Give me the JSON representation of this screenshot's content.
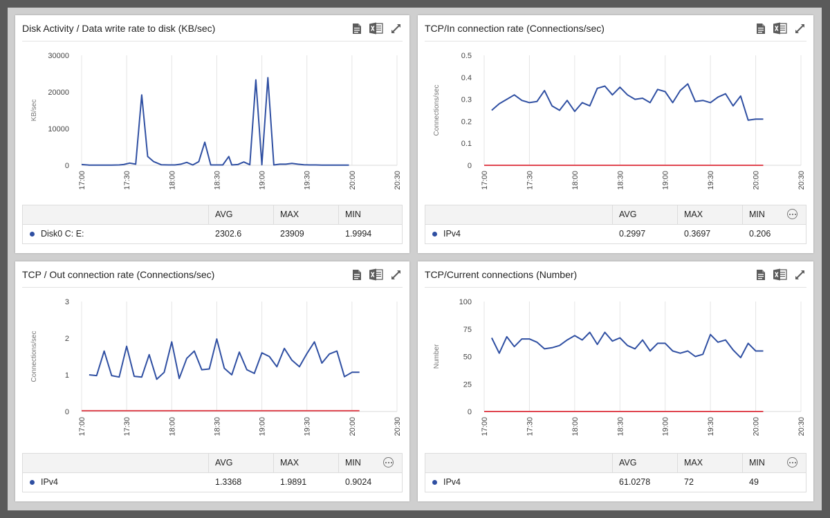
{
  "panels": [
    {
      "title": "Disk Activity / Data write rate to disk (KB/sec)",
      "show_more": false,
      "stats": {
        "headers": [
          "AVG",
          "MAX",
          "MIN"
        ],
        "row": {
          "name": "Disk0 C: E:",
          "avg": "2302.6",
          "max": "23909",
          "min": "1.9994"
        }
      },
      "chart_data": {
        "type": "line",
        "ylabel": "KB/sec",
        "yticks": [
          "0",
          "10000",
          "20000",
          "30000"
        ],
        "ylim": [
          0,
          30000
        ],
        "xticks": [
          "17:00",
          "17:30",
          "18:00",
          "18:30",
          "19:00",
          "19:30",
          "20:00",
          "20:30"
        ],
        "xlim": [
          0,
          210
        ],
        "grid": "vertical",
        "series": [
          {
            "color": "#2f4fa2",
            "x": [
              0,
              5,
              10,
              15,
              20,
              25,
              28,
              32,
              36,
              40,
              44,
              48,
              53,
              58,
              62,
              66,
              70,
              74,
              78,
              82,
              86,
              90,
              94,
              98,
              100,
              104,
              108,
              112,
              116,
              120,
              124,
              128,
              132,
              136,
              140,
              144,
              148,
              152,
              156,
              160,
              164,
              168,
              172,
              178
            ],
            "y": [
              200,
              50,
              50,
              50,
              50,
              100,
              200,
              600,
              300,
              19200,
              2400,
              1000,
              150,
              100,
              100,
              300,
              800,
              100,
              1000,
              6300,
              100,
              100,
              100,
              2400,
              100,
              200,
              900,
              150,
              23300,
              150,
              23900,
              100,
              300,
              300,
              500,
              300,
              150,
              100,
              100,
              50,
              50,
              50,
              50,
              50
            ]
          }
        ]
      }
    },
    {
      "title": "TCP/In connection rate (Connections/sec)",
      "show_more": true,
      "stats": {
        "headers": [
          "AVG",
          "MAX",
          "MIN"
        ],
        "row": {
          "name": "IPv4",
          "avg": "0.2997",
          "max": "0.3697",
          "min": "0.206"
        }
      },
      "chart_data": {
        "type": "line",
        "ylabel": "Connections/sec",
        "yticks": [
          "0",
          "0.1",
          "0.2",
          "0.3",
          "0.4",
          "0.5"
        ],
        "ylim": [
          0,
          0.5
        ],
        "xticks": [
          "17:00",
          "17:30",
          "18:00",
          "18:30",
          "19:00",
          "19:30",
          "20:00",
          "20:30"
        ],
        "xlim": [
          0,
          210
        ],
        "grid": "vertical",
        "series": [
          {
            "color": "#2f4fa2",
            "x": [
              5,
              10,
              15,
              20,
              25,
              30,
              35,
              40,
              45,
              50,
              55,
              60,
              65,
              70,
              75,
              80,
              85,
              90,
              95,
              100,
              105,
              110,
              115,
              120,
              125,
              130,
              135,
              140,
              145,
              150,
              155,
              160,
              165,
              170,
              175,
              180,
              185
            ],
            "y": [
              0.25,
              0.28,
              0.3,
              0.32,
              0.295,
              0.285,
              0.29,
              0.34,
              0.27,
              0.25,
              0.295,
              0.245,
              0.285,
              0.27,
              0.35,
              0.36,
              0.32,
              0.355,
              0.32,
              0.3,
              0.305,
              0.285,
              0.345,
              0.335,
              0.285,
              0.34,
              0.37,
              0.29,
              0.295,
              0.285,
              0.31,
              0.325,
              0.27,
              0.315,
              0.205,
              0.21,
              0.21
            ]
          },
          {
            "color": "#e0454f",
            "x": [
              0,
              185
            ],
            "y": [
              0,
              0
            ]
          }
        ]
      }
    },
    {
      "title": "TCP / Out connection rate (Connections/sec)",
      "show_more": true,
      "stats": {
        "headers": [
          "AVG",
          "MAX",
          "MIN"
        ],
        "row": {
          "name": "IPv4",
          "avg": "1.3368",
          "max": "1.9891",
          "min": "0.9024"
        }
      },
      "chart_data": {
        "type": "line",
        "ylabel": "Connections/sec",
        "yticks": [
          "0",
          "1",
          "2",
          "3"
        ],
        "ylim": [
          0,
          3
        ],
        "xticks": [
          "17:00",
          "17:30",
          "18:00",
          "18:30",
          "19:00",
          "19:30",
          "20:00",
          "20:30"
        ],
        "xlim": [
          0,
          210
        ],
        "grid": "vertical",
        "series": [
          {
            "color": "#2f4fa2",
            "x": [
              5,
              10,
              15,
              20,
              25,
              30,
              35,
              40,
              45,
              50,
              55,
              60,
              65,
              70,
              75,
              80,
              85,
              90,
              95,
              100,
              105,
              110,
              115,
              120,
              125,
              130,
              135,
              140,
              145,
              150,
              155,
              160,
              165,
              170,
              175,
              180,
              185
            ],
            "y": [
              1.0,
              0.98,
              1.65,
              0.98,
              0.94,
              1.78,
              0.96,
              0.94,
              1.55,
              0.88,
              1.07,
              1.9,
              0.9,
              1.45,
              1.65,
              1.14,
              1.16,
              1.98,
              1.18,
              1.0,
              1.62,
              1.14,
              1.04,
              1.6,
              1.5,
              1.22,
              1.72,
              1.4,
              1.22,
              1.58,
              1.9,
              1.32,
              1.57,
              1.65,
              0.95,
              1.07,
              1.07
            ]
          },
          {
            "color": "#e0454f",
            "x": [
              0,
              185
            ],
            "y": [
              0.02,
              0.02
            ]
          }
        ]
      }
    },
    {
      "title": "TCP/Current connections (Number)",
      "show_more": true,
      "stats": {
        "headers": [
          "AVG",
          "MAX",
          "MIN"
        ],
        "row": {
          "name": "IPv4",
          "avg": "61.0278",
          "max": "72",
          "min": "49"
        }
      },
      "chart_data": {
        "type": "line",
        "ylabel": "Number",
        "yticks": [
          "0",
          "25",
          "50",
          "75",
          "100"
        ],
        "ylim": [
          0,
          100
        ],
        "xticks": [
          "17:00",
          "17:30",
          "18:00",
          "18:30",
          "19:00",
          "19:30",
          "20:00",
          "20:30"
        ],
        "xlim": [
          0,
          210
        ],
        "grid": "vertical",
        "series": [
          {
            "color": "#2f4fa2",
            "x": [
              5,
              10,
              15,
              20,
              25,
              30,
              35,
              40,
              45,
              50,
              55,
              60,
              65,
              70,
              75,
              80,
              85,
              90,
              95,
              100,
              105,
              110,
              115,
              120,
              125,
              130,
              135,
              140,
              145,
              150,
              155,
              160,
              165,
              170,
              175,
              180,
              185
            ],
            "y": [
              67,
              53,
              68,
              59,
              66,
              66,
              63,
              57,
              58,
              60,
              65,
              69,
              65,
              72,
              61,
              72,
              64,
              67,
              60,
              57,
              65,
              55,
              62,
              62,
              55,
              53,
              55,
              50,
              52,
              70,
              63,
              65,
              56,
              49,
              62,
              55,
              55
            ]
          },
          {
            "color": "#e0454f",
            "x": [
              0,
              185
            ],
            "y": [
              0,
              0
            ]
          }
        ]
      }
    }
  ]
}
